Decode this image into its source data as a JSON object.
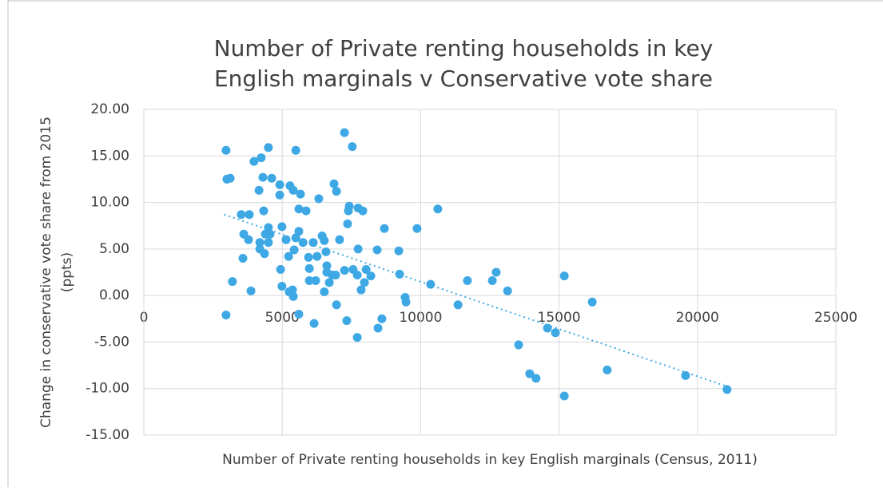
{
  "chart_data": {
    "type": "scatter",
    "title": [
      "Number of Private renting households in key",
      "English marginals v Conservative vote share"
    ],
    "x_label": "Number of Private renting households in key English marginals (Census, 2011)",
    "y_label": [
      "Change in conservative vote share from 2015",
      "(ppts)"
    ],
    "color": "#3ea8e5",
    "grid": true,
    "xlim": [
      0,
      25000
    ],
    "xticks": [
      0,
      5000,
      10000,
      15000,
      20000,
      25000
    ],
    "ylim": [
      -15,
      20
    ],
    "yticks": [
      {
        "value": 20,
        "label": "20.00"
      },
      {
        "value": 15,
        "label": "15.00"
      },
      {
        "value": 10,
        "label": "10.00"
      },
      {
        "value": 5,
        "label": "5.00"
      },
      {
        "value": 0,
        "label": "0.00"
      },
      {
        "value": -5,
        "label": "-5.00"
      },
      {
        "value": -10,
        "label": "-10.00"
      },
      {
        "value": -15,
        "label": "-15.00"
      }
    ],
    "x": [
      2970,
      3000,
      3120,
      2970,
      3200,
      3520,
      3810,
      3610,
      3580,
      3780,
      3870,
      3980,
      4240,
      4500,
      4300,
      4620,
      4160,
      4330,
      4500,
      4390,
      4560,
      4190,
      4500,
      4190,
      4360,
      4910,
      4910,
      4990,
      5140,
      4940,
      4990,
      5230,
      5280,
      5400,
      5490,
      5660,
      5600,
      5600,
      5490,
      5750,
      5430,
      5250,
      5370,
      5400,
      5600,
      5860,
      5950,
      5980,
      5980,
      6120,
      6260,
      6210,
      6150,
      6320,
      6440,
      6520,
      6580,
      6610,
      6610,
      6520,
      6700,
      6810,
      6870,
      6960,
      6930,
      6960,
      7070,
      7250,
      7250,
      7390,
      7420,
      7360,
      7530,
      7330,
      7560,
      7710,
      7740,
      7740,
      7910,
      7850,
      7970,
      8030,
      7710,
      8200,
      8430,
      8690,
      8460,
      8600,
      9210,
      9240,
      9440,
      9470,
      9870,
      10620,
      10360,
      11350,
      11690,
      12590,
      12730,
      13140,
      13540,
      13940,
      14170,
      14580,
      14870,
      15190,
      15190,
      16200,
      16740,
      19570,
      21070
    ],
    "values": [
      15.6,
      12.5,
      12.6,
      -2.1,
      1.5,
      8.7,
      8.7,
      6.6,
      4.0,
      6.0,
      0.5,
      14.4,
      14.8,
      15.9,
      12.7,
      12.6,
      11.3,
      9.1,
      7.3,
      6.6,
      6.6,
      5.7,
      5.7,
      5.0,
      4.5,
      11.9,
      10.8,
      7.4,
      6.0,
      2.8,
      1.0,
      4.2,
      11.8,
      11.3,
      15.6,
      10.9,
      9.3,
      6.9,
      6.2,
      5.7,
      4.9,
      0.4,
      0.6,
      -0.1,
      -2.0,
      9.1,
      4.1,
      2.9,
      1.6,
      5.7,
      4.2,
      1.6,
      -3.0,
      10.4,
      6.4,
      5.9,
      4.7,
      3.2,
      2.5,
      0.4,
      1.4,
      2.2,
      12.0,
      11.2,
      2.2,
      -1.0,
      6.0,
      2.7,
      17.5,
      9.1,
      9.6,
      7.7,
      16.0,
      -2.7,
      2.8,
      2.2,
      5.0,
      9.4,
      9.1,
      0.6,
      1.4,
      2.8,
      -4.5,
      2.1,
      4.9,
      7.2,
      -3.5,
      -2.5,
      4.8,
      2.3,
      -0.2,
      -0.7,
      7.2,
      9.3,
      1.2,
      -1.0,
      1.6,
      1.6,
      2.5,
      0.5,
      -5.3,
      -8.4,
      -8.9,
      -3.5,
      -4.0,
      2.1,
      -10.8,
      -0.7,
      -8.0,
      -8.6,
      -10.1
    ],
    "trendline": {
      "x": [
        2900,
        21100
      ],
      "y": [
        8.7,
        -9.8
      ]
    }
  }
}
